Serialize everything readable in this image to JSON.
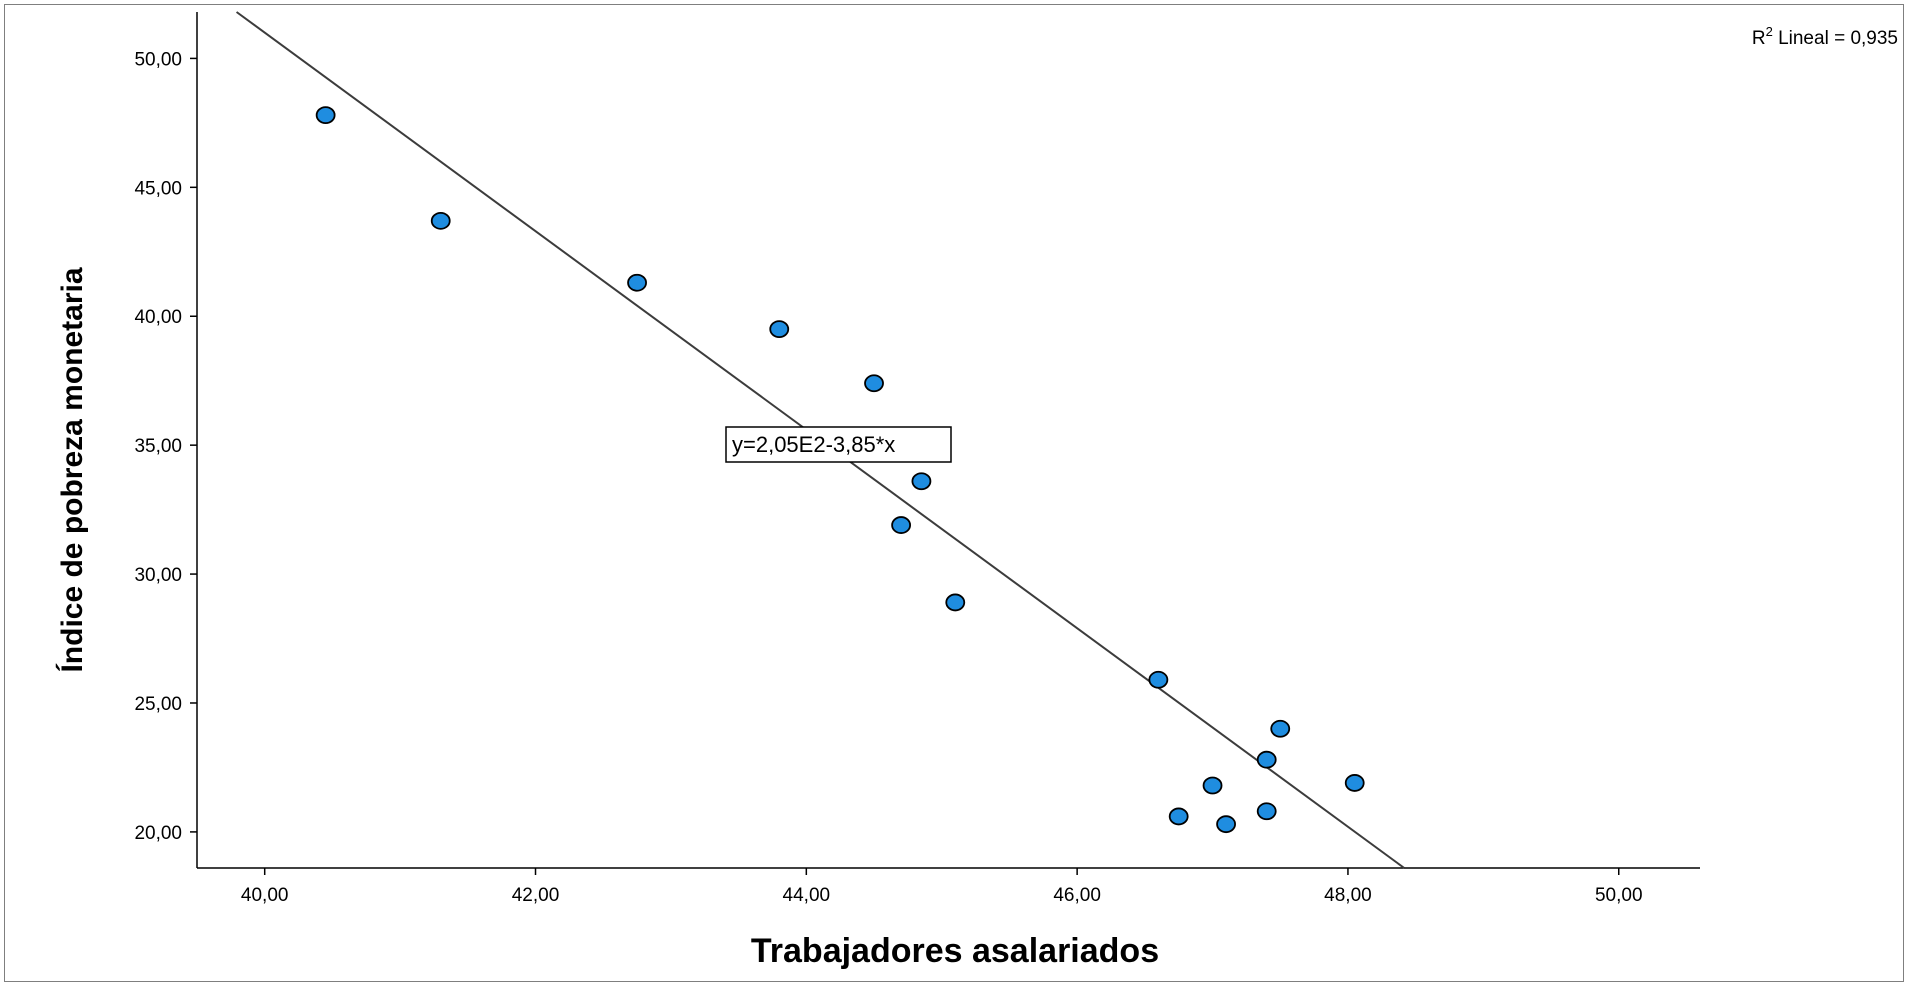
{
  "chart_data": {
    "type": "scatter",
    "xlabel": "Trabajadores asalariados",
    "ylabel": "Índice de pobreza monetaria",
    "xlim": [
      39.5,
      50.6
    ],
    "ylim": [
      18.6,
      51.8
    ],
    "x_ticks": [
      "40,00",
      "42,00",
      "44,00",
      "46,00",
      "48,00",
      "50,00"
    ],
    "x_tick_values": [
      40,
      42,
      44,
      46,
      48,
      50
    ],
    "y_ticks": [
      "50,00",
      "45,00",
      "40,00",
      "35,00",
      "30,00",
      "25,00",
      "20,00"
    ],
    "y_tick_values": [
      50,
      45,
      40,
      35,
      30,
      25,
      20
    ],
    "points": [
      {
        "x": 40.45,
        "y": 47.8
      },
      {
        "x": 41.3,
        "y": 43.7
      },
      {
        "x": 42.75,
        "y": 41.3
      },
      {
        "x": 43.8,
        "y": 39.5
      },
      {
        "x": 44.5,
        "y": 37.4
      },
      {
        "x": 44.85,
        "y": 33.6
      },
      {
        "x": 44.7,
        "y": 31.9
      },
      {
        "x": 45.1,
        "y": 28.9
      },
      {
        "x": 46.6,
        "y": 25.9
      },
      {
        "x": 47.5,
        "y": 24.0
      },
      {
        "x": 47.4,
        "y": 22.8
      },
      {
        "x": 48.05,
        "y": 21.9
      },
      {
        "x": 47.0,
        "y": 21.8
      },
      {
        "x": 46.75,
        "y": 20.6
      },
      {
        "x": 47.1,
        "y": 20.3
      },
      {
        "x": 47.4,
        "y": 20.8
      }
    ],
    "fit_line": {
      "intercept": 205,
      "slope": -3.85,
      "equation_label": "y=2,05E2-3,85*x"
    },
    "r2_label": {
      "prefix": "R",
      "superscript": "2",
      "text": " Lineal = 0,935"
    },
    "grid": false,
    "colors": {
      "point_fill": "#1f8de0",
      "point_stroke": "#000000",
      "line": "#3c3c3c",
      "axis": "#000000"
    }
  }
}
